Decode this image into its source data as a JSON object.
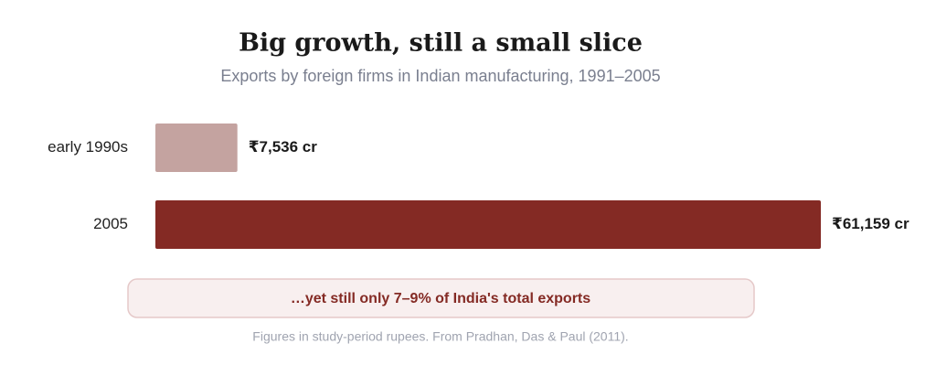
{
  "chart_data": {
    "type": "bar",
    "orientation": "horizontal",
    "title": "Big growth, still a small slice",
    "subtitle": "Exports by foreign firms in Indian manufacturing, 1991–2005",
    "categories": [
      "early 1990s",
      "2005"
    ],
    "values": [
      7536,
      61159
    ],
    "value_labels": [
      "₹7,536 cr",
      "₹61,159 cr"
    ],
    "colors": [
      "#c4a3a0",
      "#842a24"
    ],
    "annotation": "…yet still only 7–9% of India's total exports",
    "note": "Figures in study-period rupees. From Pradhan, Das & Paul (2011)."
  }
}
